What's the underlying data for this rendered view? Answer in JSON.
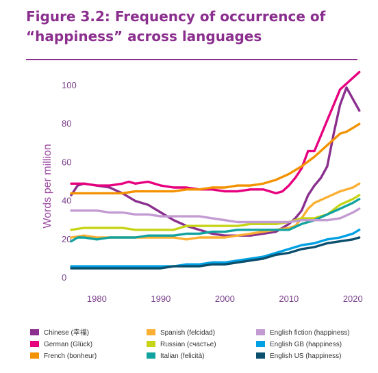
{
  "figure": {
    "title_line1": "Figure 3.2: Frequency of occurrence of",
    "title_line2": "“happiness” across languages"
  },
  "chart_data": {
    "type": "line",
    "title": "Figure 3.2: Frequency of occurrence of “happiness” across languages",
    "xlabel": "",
    "ylabel": "Words per million",
    "xlim": [
      1976,
      2022
    ],
    "ylim": [
      0,
      105
    ],
    "x_ticks": [
      1980,
      1990,
      2000,
      2010,
      2020
    ],
    "y_ticks": [
      0,
      20,
      40,
      60,
      80,
      100
    ],
    "grid": false,
    "legend_position": "bottom",
    "series": [
      {
        "name": "Chinese (幸福)",
        "color": "#8b2f8e",
        "points": [
          [
            1976,
            43
          ],
          [
            1977,
            48
          ],
          [
            1978,
            49
          ],
          [
            1980,
            48
          ],
          [
            1982,
            47
          ],
          [
            1984,
            44
          ],
          [
            1986,
            40
          ],
          [
            1988,
            38
          ],
          [
            1990,
            34
          ],
          [
            1992,
            30
          ],
          [
            1994,
            27
          ],
          [
            1996,
            25
          ],
          [
            1998,
            23
          ],
          [
            2000,
            22
          ],
          [
            2002,
            22
          ],
          [
            2004,
            22
          ],
          [
            2006,
            23
          ],
          [
            2008,
            24
          ],
          [
            2010,
            28
          ],
          [
            2011,
            31
          ],
          [
            2012,
            35
          ],
          [
            2013,
            43
          ],
          [
            2014,
            48
          ],
          [
            2015,
            52
          ],
          [
            2016,
            58
          ],
          [
            2017,
            75
          ],
          [
            2018,
            90
          ],
          [
            2019,
            99
          ],
          [
            2020,
            93
          ],
          [
            2021,
            87
          ]
        ]
      },
      {
        "name": "German (Glück)",
        "color": "#e6007e",
        "points": [
          [
            1976,
            49
          ],
          [
            1978,
            49
          ],
          [
            1980,
            48
          ],
          [
            1982,
            48
          ],
          [
            1984,
            49
          ],
          [
            1985,
            50
          ],
          [
            1986,
            49
          ],
          [
            1988,
            50
          ],
          [
            1990,
            48
          ],
          [
            1992,
            47
          ],
          [
            1994,
            47
          ],
          [
            1996,
            46
          ],
          [
            1998,
            46
          ],
          [
            2000,
            45
          ],
          [
            2002,
            45
          ],
          [
            2004,
            46
          ],
          [
            2006,
            46
          ],
          [
            2008,
            44
          ],
          [
            2009,
            45
          ],
          [
            2010,
            48
          ],
          [
            2011,
            52
          ],
          [
            2012,
            57
          ],
          [
            2013,
            66
          ],
          [
            2014,
            66
          ],
          [
            2015,
            74
          ],
          [
            2016,
            82
          ],
          [
            2017,
            90
          ],
          [
            2018,
            98
          ],
          [
            2019,
            101
          ],
          [
            2020,
            104
          ],
          [
            2021,
            107
          ]
        ]
      },
      {
        "name": "French (bonheur)",
        "color": "#f39200",
        "points": [
          [
            1976,
            44
          ],
          [
            1978,
            44
          ],
          [
            1980,
            44
          ],
          [
            1982,
            44
          ],
          [
            1984,
            44
          ],
          [
            1986,
            45
          ],
          [
            1988,
            45
          ],
          [
            1990,
            45
          ],
          [
            1992,
            45
          ],
          [
            1994,
            46
          ],
          [
            1996,
            46
          ],
          [
            1998,
            47
          ],
          [
            2000,
            47
          ],
          [
            2002,
            48
          ],
          [
            2004,
            48
          ],
          [
            2006,
            49
          ],
          [
            2008,
            51
          ],
          [
            2010,
            54
          ],
          [
            2012,
            58
          ],
          [
            2014,
            63
          ],
          [
            2016,
            69
          ],
          [
            2018,
            75
          ],
          [
            2019,
            76
          ],
          [
            2020,
            78
          ],
          [
            2021,
            80
          ]
        ]
      },
      {
        "name": "Spanish (felcidad)",
        "color": "#fbb034",
        "points": [
          [
            1976,
            21
          ],
          [
            1978,
            22
          ],
          [
            1980,
            21
          ],
          [
            1982,
            21
          ],
          [
            1984,
            21
          ],
          [
            1986,
            21
          ],
          [
            1988,
            21
          ],
          [
            1990,
            21
          ],
          [
            1992,
            21
          ],
          [
            1994,
            20
          ],
          [
            1996,
            21
          ],
          [
            1998,
            21
          ],
          [
            2000,
            21
          ],
          [
            2002,
            22
          ],
          [
            2004,
            23
          ],
          [
            2006,
            24
          ],
          [
            2008,
            25
          ],
          [
            2010,
            26
          ],
          [
            2011,
            27
          ],
          [
            2012,
            31
          ],
          [
            2013,
            36
          ],
          [
            2014,
            39
          ],
          [
            2016,
            42
          ],
          [
            2018,
            45
          ],
          [
            2020,
            47
          ],
          [
            2021,
            49
          ]
        ]
      },
      {
        "name": "Russian (счастье)",
        "color": "#c6d416",
        "points": [
          [
            1976,
            25
          ],
          [
            1978,
            26
          ],
          [
            1980,
            26
          ],
          [
            1982,
            26
          ],
          [
            1984,
            26
          ],
          [
            1986,
            25
          ],
          [
            1988,
            25
          ],
          [
            1990,
            25
          ],
          [
            1992,
            25
          ],
          [
            1994,
            27
          ],
          [
            1996,
            27
          ],
          [
            1998,
            27
          ],
          [
            2000,
            27
          ],
          [
            2002,
            27
          ],
          [
            2004,
            28
          ],
          [
            2006,
            28
          ],
          [
            2008,
            28
          ],
          [
            2010,
            29
          ],
          [
            2012,
            31
          ],
          [
            2014,
            31
          ],
          [
            2016,
            33
          ],
          [
            2018,
            38
          ],
          [
            2020,
            41
          ],
          [
            2021,
            43
          ]
        ]
      },
      {
        "name": "Italian (felicità)",
        "color": "#12a3a0",
        "points": [
          [
            1976,
            19
          ],
          [
            1977,
            21
          ],
          [
            1978,
            21
          ],
          [
            1980,
            20
          ],
          [
            1982,
            21
          ],
          [
            1984,
            21
          ],
          [
            1986,
            21
          ],
          [
            1988,
            22
          ],
          [
            1990,
            22
          ],
          [
            1992,
            22
          ],
          [
            1994,
            23
          ],
          [
            1996,
            23
          ],
          [
            1998,
            24
          ],
          [
            2000,
            24
          ],
          [
            2002,
            25
          ],
          [
            2004,
            25
          ],
          [
            2006,
            25
          ],
          [
            2008,
            25
          ],
          [
            2010,
            25
          ],
          [
            2012,
            28
          ],
          [
            2014,
            30
          ],
          [
            2016,
            33
          ],
          [
            2018,
            36
          ],
          [
            2020,
            39
          ],
          [
            2021,
            41
          ]
        ]
      },
      {
        "name": "English fiction (happiness)",
        "color": "#c39bd3",
        "points": [
          [
            1976,
            35
          ],
          [
            1978,
            35
          ],
          [
            1980,
            35
          ],
          [
            1982,
            34
          ],
          [
            1984,
            34
          ],
          [
            1986,
            33
          ],
          [
            1988,
            33
          ],
          [
            1990,
            32
          ],
          [
            1992,
            32
          ],
          [
            1994,
            32
          ],
          [
            1996,
            32
          ],
          [
            1998,
            31
          ],
          [
            2000,
            30
          ],
          [
            2002,
            29
          ],
          [
            2004,
            29
          ],
          [
            2006,
            29
          ],
          [
            2008,
            29
          ],
          [
            2010,
            29
          ],
          [
            2012,
            30
          ],
          [
            2014,
            30
          ],
          [
            2016,
            30
          ],
          [
            2018,
            31
          ],
          [
            2020,
            34
          ],
          [
            2021,
            36
          ]
        ]
      },
      {
        "name": "English GB (happiness)",
        "color": "#00a0e3",
        "points": [
          [
            1976,
            6
          ],
          [
            1978,
            6
          ],
          [
            1980,
            6
          ],
          [
            1982,
            6
          ],
          [
            1984,
            6
          ],
          [
            1986,
            6
          ],
          [
            1988,
            6
          ],
          [
            1990,
            6
          ],
          [
            1992,
            6
          ],
          [
            1994,
            7
          ],
          [
            1996,
            7
          ],
          [
            1998,
            8
          ],
          [
            2000,
            8
          ],
          [
            2002,
            9
          ],
          [
            2004,
            10
          ],
          [
            2006,
            11
          ],
          [
            2008,
            13
          ],
          [
            2010,
            15
          ],
          [
            2012,
            17
          ],
          [
            2014,
            18
          ],
          [
            2016,
            20
          ],
          [
            2018,
            21
          ],
          [
            2020,
            23
          ],
          [
            2021,
            25
          ]
        ]
      },
      {
        "name": "English US (happiness)",
        "color": "#0b4f6c",
        "points": [
          [
            1976,
            5
          ],
          [
            1978,
            5
          ],
          [
            1980,
            5
          ],
          [
            1982,
            5
          ],
          [
            1984,
            5
          ],
          [
            1986,
            5
          ],
          [
            1988,
            5
          ],
          [
            1990,
            5
          ],
          [
            1992,
            6
          ],
          [
            1994,
            6
          ],
          [
            1996,
            6
          ],
          [
            1998,
            7
          ],
          [
            2000,
            7
          ],
          [
            2002,
            8
          ],
          [
            2004,
            9
          ],
          [
            2006,
            10
          ],
          [
            2008,
            12
          ],
          [
            2010,
            13
          ],
          [
            2012,
            15
          ],
          [
            2014,
            16
          ],
          [
            2016,
            18
          ],
          [
            2018,
            19
          ],
          [
            2020,
            20
          ],
          [
            2021,
            21
          ]
        ]
      }
    ]
  }
}
